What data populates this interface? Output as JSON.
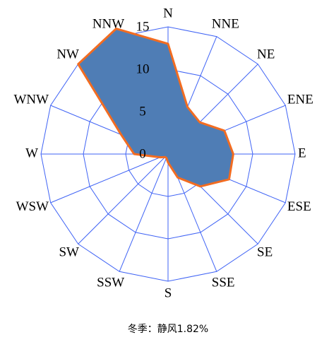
{
  "chart_data": {
    "type": "radar",
    "categories": [
      "N",
      "NNE",
      "NE",
      "ENE",
      "E",
      "ESE",
      "SE",
      "SSE",
      "S",
      "SSW",
      "SW",
      "WSW",
      "W",
      "WNW",
      "NW",
      "NNW"
    ],
    "values": [
      13,
      6,
      5.3,
      7.2,
      7.7,
      7.8,
      5.4,
      3,
      1,
      0.5,
      0.5,
      1,
      4,
      6,
      15,
      16
    ],
    "rlim": [
      0,
      15
    ],
    "rticks": [
      0,
      5,
      10,
      15
    ],
    "fill_color": "#4f7db5",
    "line_color": "#f26c21",
    "grid_color": "#3f63f5",
    "caption": "冬季：静风1.82%"
  }
}
